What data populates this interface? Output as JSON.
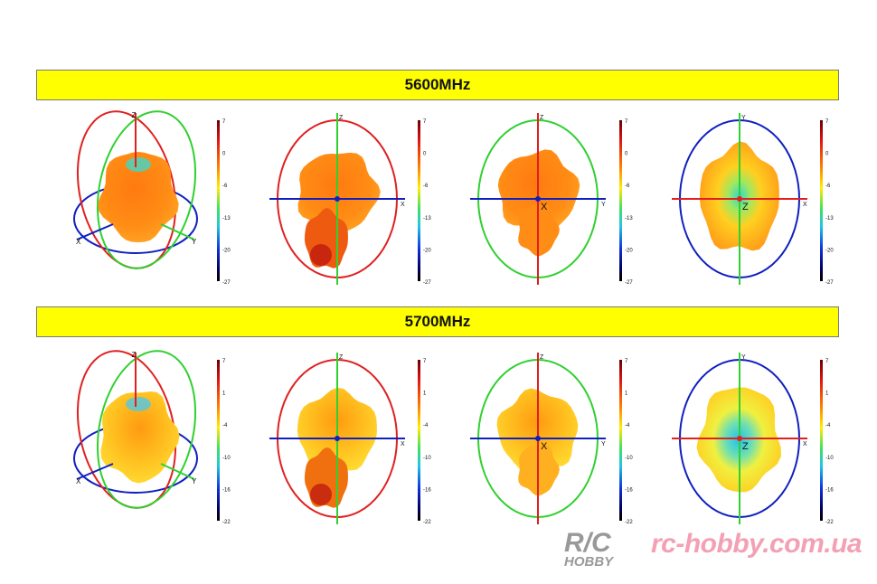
{
  "rows": [
    {
      "title": "5600MHz",
      "colorbar_ticks": [
        "7",
        "0",
        "-6",
        "-13",
        "-20",
        "-27"
      ]
    },
    {
      "title": "5700MHz",
      "colorbar_ticks": [
        "7",
        "1",
        "-4",
        "-10",
        "-16",
        "-22"
      ]
    }
  ],
  "views": [
    {
      "type": "3d",
      "axis_labels": {
        "vertical": "Z",
        "left": "X",
        "right": "Y"
      }
    },
    {
      "type": "2d",
      "ellipse_color": "#e02020",
      "vertical_color": "#30d030",
      "horizontal_color": "#1020c0",
      "axis_labels": {
        "vertical": "Z",
        "horizontal": "X",
        "center": ""
      }
    },
    {
      "type": "2d",
      "ellipse_color": "#30d030",
      "vertical_color": "#e02020",
      "horizontal_color": "#1020c0",
      "axis_labels": {
        "vertical": "Z",
        "horizontal": "Y",
        "center": "X"
      }
    },
    {
      "type": "2d",
      "ellipse_color": "#1020c0",
      "vertical_color": "#30d030",
      "horizontal_color": "#e02020",
      "axis_labels": {
        "vertical": "Y",
        "horizontal": "X",
        "center": "Z"
      }
    }
  ],
  "watermark": {
    "logo_text": "R/C HOBBY",
    "site": "rc-hobby.com.ua"
  }
}
